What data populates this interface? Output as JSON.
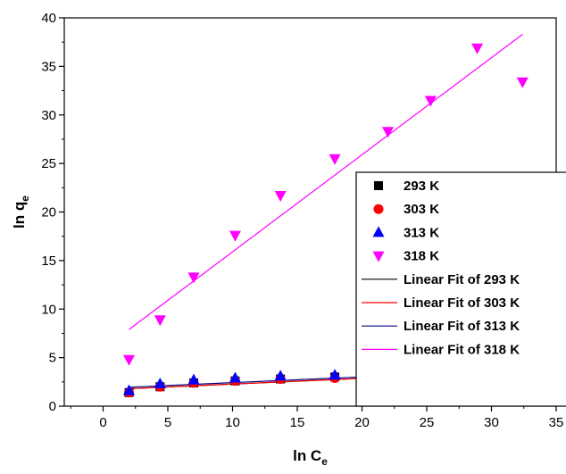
{
  "chart_data": {
    "type": "scatter",
    "title": "",
    "xlabel": {
      "main": "ln C",
      "sub": "e"
    },
    "ylabel": {
      "main": "ln q",
      "sub": "e"
    },
    "xlim": [
      -3,
      35
    ],
    "ylim": [
      0,
      40
    ],
    "xticks": [
      0,
      5,
      10,
      15,
      20,
      25,
      30,
      35
    ],
    "yticks": [
      0,
      5,
      10,
      15,
      20,
      25,
      30,
      35,
      40
    ],
    "grid": false,
    "legend_position": "right",
    "series": [
      {
        "name": "293 K",
        "marker": "square",
        "color": "#000000",
        "x": [
          2.0,
          4.4,
          7.0,
          10.2,
          13.7,
          17.9,
          22.0,
          25.3,
          28.9,
          32.4
        ],
        "y": [
          1.4,
          2.0,
          2.4,
          2.6,
          2.8,
          3.0,
          3.1,
          3.3,
          3.5,
          3.3
        ]
      },
      {
        "name": "303 K",
        "marker": "circle",
        "color": "#ff0000",
        "x": [
          2.0,
          4.4,
          7.0,
          10.2,
          13.7,
          17.9,
          22.0,
          25.3,
          28.9,
          32.4
        ],
        "y": [
          1.4,
          2.0,
          2.4,
          2.6,
          2.8,
          2.9,
          3.1,
          3.2,
          3.5,
          3.3
        ]
      },
      {
        "name": "313 K",
        "marker": "triangle-up",
        "color": "#0000ff",
        "x": [
          2.0,
          4.4,
          7.0,
          10.2,
          13.7,
          17.9,
          22.0,
          25.3,
          28.9,
          32.4
        ],
        "y": [
          1.6,
          2.3,
          2.7,
          2.9,
          3.1,
          3.2,
          3.3,
          3.5,
          3.7,
          3.6
        ]
      },
      {
        "name": "318 K",
        "marker": "triangle-down",
        "color": "#ff00ff",
        "x": [
          2.0,
          4.4,
          7.0,
          10.2,
          13.7,
          17.9,
          22.0,
          25.3,
          28.9,
          32.4
        ],
        "y": [
          4.8,
          8.9,
          13.3,
          17.6,
          21.7,
          25.5,
          28.3,
          31.5,
          36.9,
          33.4
        ]
      }
    ],
    "fits": [
      {
        "name": "Linear Fit of 293 K",
        "color": "#000000",
        "x": [
          2.0,
          32.4
        ],
        "y": [
          1.8,
          3.6
        ]
      },
      {
        "name": "Linear Fit of 303 K",
        "color": "#ff0000",
        "x": [
          2.0,
          32.4
        ],
        "y": [
          1.8,
          3.6
        ]
      },
      {
        "name": "Linear Fit of 313 K",
        "color": "#000080",
        "x": [
          2.0,
          32.4
        ],
        "y": [
          1.95,
          3.75
        ]
      },
      {
        "name": "Linear Fit of 318 K",
        "color": "#ff00ff",
        "x": [
          2.0,
          32.4
        ],
        "y": [
          7.9,
          38.3
        ]
      }
    ]
  }
}
